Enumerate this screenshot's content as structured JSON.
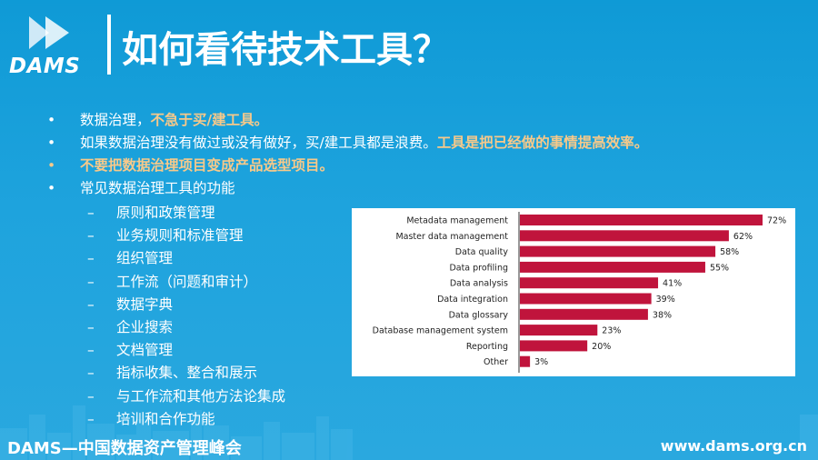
{
  "logo": {
    "text": "DAMS",
    "icon": "double-play-arrows-icon"
  },
  "title": "如何看待技术工具？",
  "bullets": [
    {
      "segments": [
        {
          "text": "数据治理，",
          "highlight": false
        },
        {
          "text": "不急于买/建工具。",
          "highlight": true
        }
      ]
    },
    {
      "segments": [
        {
          "text": "如果数据治理没有做过或没有做好，买/建工具都是浪费。",
          "highlight": false
        },
        {
          "text": "工具是把已经做的事情提高效率。",
          "highlight": true
        }
      ]
    },
    {
      "segments": [
        {
          "text": "不要把数据治理项目变成产品选型项目。",
          "highlight": true
        }
      ]
    },
    {
      "segments": [
        {
          "text": "常见数据治理工具的功能",
          "highlight": false
        }
      ]
    }
  ],
  "bullet_marker": "•",
  "dash_marker": "–",
  "sub_items": [
    "原则和政策管理",
    "业务规则和标准管理",
    "组织管理",
    "工作流（问题和审计）",
    "数据字典",
    "企业搜索",
    "文档管理",
    "指标收集、整合和展示",
    "与工作流和其他方法论集成",
    "培训和合作功能"
  ],
  "chart_data": {
    "type": "bar",
    "orientation": "horizontal",
    "categories": [
      "Metadata management",
      "Master data management",
      "Data quality",
      "Data profiling",
      "Data analysis",
      "Data integration",
      "Data glossary",
      "Database management system",
      "Reporting",
      "Other"
    ],
    "values": [
      72,
      62,
      58,
      55,
      41,
      39,
      38,
      23,
      20,
      3
    ],
    "value_labels": [
      "72%",
      "62%",
      "58%",
      "55%",
      "41%",
      "39%",
      "38%",
      "23%",
      "20%",
      "3%"
    ],
    "xlim": [
      0,
      72
    ],
    "bar_color": "#c0143c",
    "grid": false
  },
  "colors": {
    "background": "#1a9fdb",
    "highlight": "#f7c98a",
    "bar": "#c0143c"
  },
  "footer": {
    "left": "DAMS—中国数据资产管理峰会",
    "right": "www.dams.org.cn"
  }
}
